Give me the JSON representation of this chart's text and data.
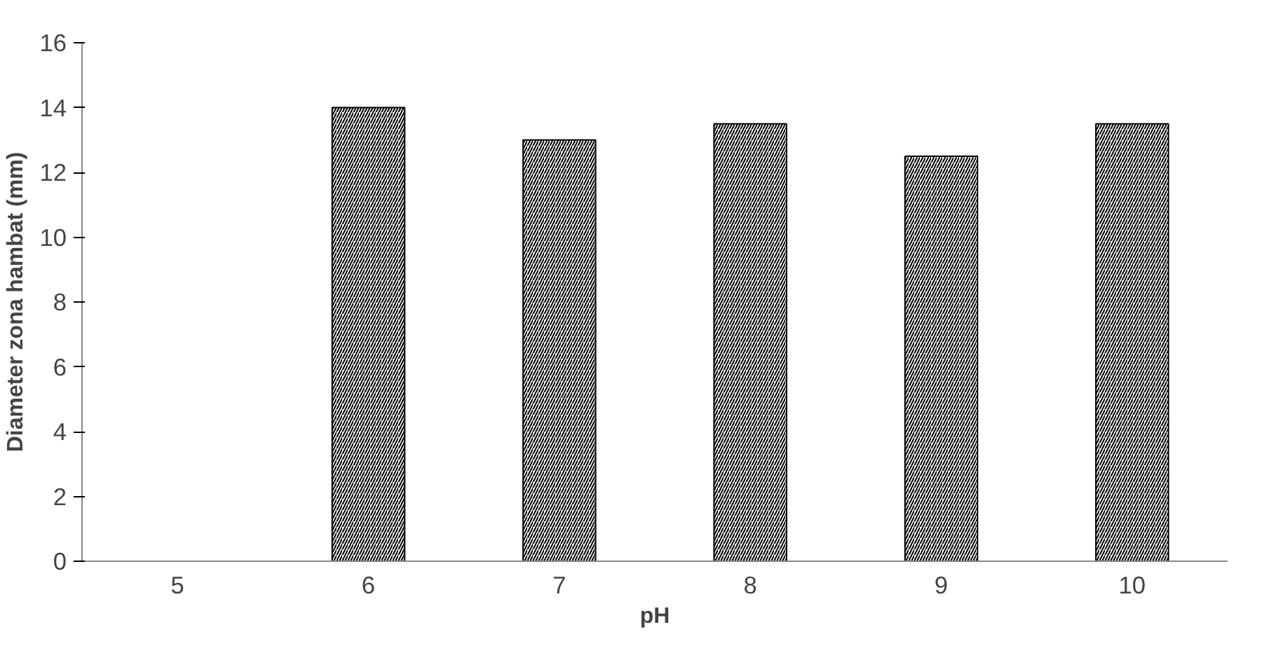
{
  "chart_data": {
    "type": "bar",
    "xlabel": "pH",
    "ylabel": "Diameter zona hambat (mm)",
    "categories": [
      "5",
      "6",
      "7",
      "8",
      "9",
      "10"
    ],
    "values": [
      0,
      14,
      13,
      13.5,
      12.5,
      13.5
    ],
    "color": "#000000",
    "ylim": [
      0,
      16
    ],
    "yticks": [
      0,
      2,
      4,
      6,
      8,
      10,
      12,
      14,
      16
    ],
    "grid": false
  }
}
